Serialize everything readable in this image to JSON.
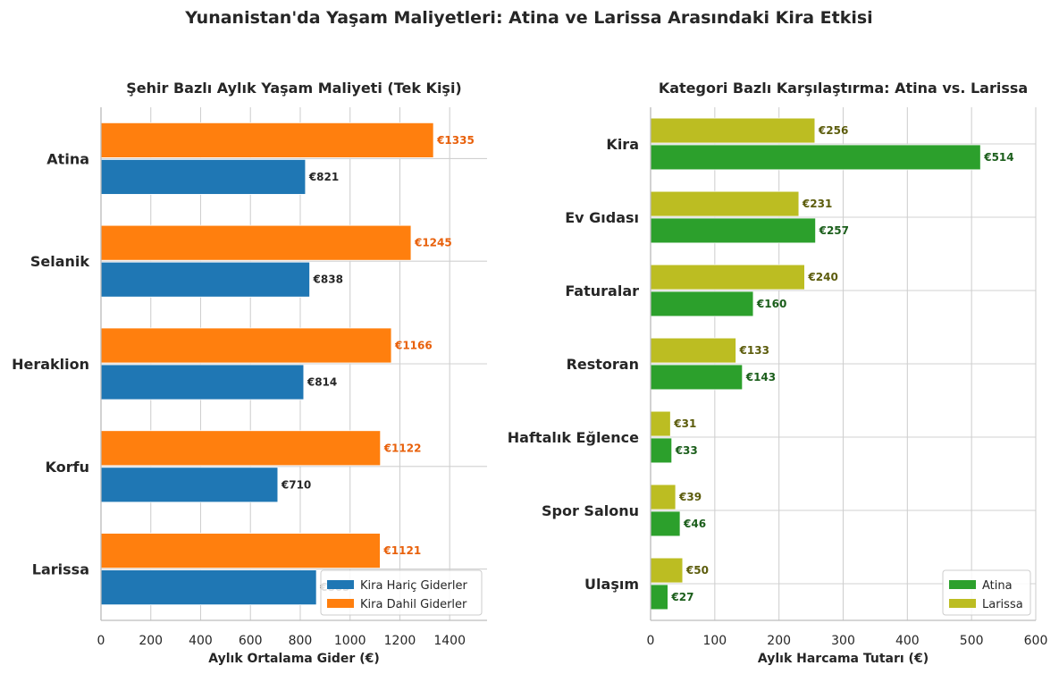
{
  "suptitle": "Yunanistan'da Yaşam Maliyetleri: Atina ve Larissa Arasındaki Kira Etkisi",
  "chart_data": [
    {
      "type": "bar",
      "orientation": "horizontal",
      "title": "Şehir Bazlı Aylık Yaşam Maliyeti (Tek Kişi)",
      "xlabel": "Aylık Ortalama Gider (€)",
      "ylabel": "",
      "categories": [
        "Atina",
        "Selanik",
        "Heraklion",
        "Korfu",
        "Larissa"
      ],
      "xlim": [
        0,
        1550
      ],
      "xticks": [
        0,
        200,
        400,
        600,
        800,
        1000,
        1200,
        1400
      ],
      "grid": true,
      "legend_position": "bottom-right",
      "series": [
        {
          "name": "Kira Hariç Giderler",
          "color": "#1f77b4",
          "label_color": "#262626",
          "values": [
            821,
            838,
            814,
            710,
            865
          ],
          "labels": [
            "€821",
            "€838",
            "€814",
            "€710",
            "€865"
          ]
        },
        {
          "name": "Kira Dahil Giderler",
          "color": "#ff7f0e",
          "label_color": "#e8600a",
          "values": [
            1335,
            1245,
            1166,
            1122,
            1121
          ],
          "labels": [
            "€1335",
            "€1245",
            "€1166",
            "€1122",
            "€1121"
          ]
        }
      ]
    },
    {
      "type": "bar",
      "orientation": "horizontal",
      "title": "Kategori Bazlı Karşılaştırma: Atina vs. Larissa",
      "xlabel": "Aylık Harcama Tutarı (€)",
      "ylabel": "",
      "categories": [
        "Kira",
        "Ev Gıdası",
        "Faturalar",
        "Restoran",
        "Haftalık Eğlence",
        "Spor Salonu",
        "Ulaşım"
      ],
      "xlim": [
        0,
        600
      ],
      "xticks": [
        0,
        100,
        200,
        300,
        400,
        500,
        600
      ],
      "grid": true,
      "legend_position": "bottom-right",
      "series": [
        {
          "name": "Atina",
          "color": "#2ca02c",
          "label_color": "#1b5e1b",
          "values": [
            514,
            257,
            160,
            143,
            33,
            46,
            27
          ],
          "labels": [
            "€514",
            "€257",
            "€160",
            "€143",
            "€33",
            "€46",
            "€27"
          ]
        },
        {
          "name": "Larissa",
          "color": "#bcbd22",
          "label_color": "#5c5c0c",
          "values": [
            256,
            231,
            240,
            133,
            31,
            39,
            50
          ],
          "labels": [
            "€256",
            "€231",
            "€240",
            "€133",
            "€31",
            "€39",
            "€50"
          ]
        }
      ]
    }
  ]
}
